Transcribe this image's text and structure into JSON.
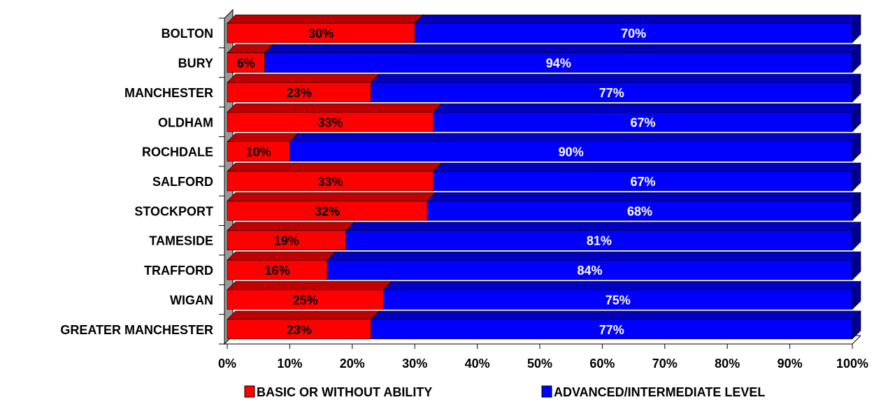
{
  "chart_data": {
    "type": "bar",
    "orientation": "horizontal",
    "stacked": true,
    "style": "3d",
    "categories": [
      "BOLTON",
      "BURY",
      "MANCHESTER",
      "OLDHAM",
      "ROCHDALE",
      "SALFORD",
      "STOCKPORT",
      "TAMESIDE",
      "TRAFFORD",
      "WIGAN",
      "GREATER MANCHESTER"
    ],
    "series": [
      {
        "name": "BASIC OR WITHOUT ABILITY",
        "color": "#ff0000",
        "label_color": "#000000",
        "values": [
          30,
          6,
          23,
          33,
          10,
          33,
          32,
          19,
          16,
          25,
          23
        ],
        "labels": [
          "30%",
          "6%",
          "23%",
          "33%",
          "10%",
          "33%",
          "32%",
          "19%",
          "16%",
          "25%",
          "23%"
        ]
      },
      {
        "name": "ADVANCED/INTERMEDIATE LEVEL",
        "color": "#0000ff",
        "label_color": "#ffffff",
        "values": [
          70,
          94,
          77,
          67,
          90,
          67,
          68,
          81,
          84,
          75,
          77
        ],
        "labels": [
          "70%",
          "94%",
          "77%",
          "67%",
          "90%",
          "67%",
          "68%",
          "81%",
          "84%",
          "75%",
          "77%"
        ]
      }
    ],
    "xlim": [
      0,
      100
    ],
    "x_ticks": [
      "0%",
      "10%",
      "20%",
      "30%",
      "40%",
      "50%",
      "60%",
      "70%",
      "80%",
      "90%",
      "100%"
    ],
    "title": "",
    "xlabel": "",
    "ylabel": "",
    "grid": false,
    "legend_position": "bottom",
    "colors": {
      "wall": "#999999",
      "axis": "#000000"
    }
  }
}
